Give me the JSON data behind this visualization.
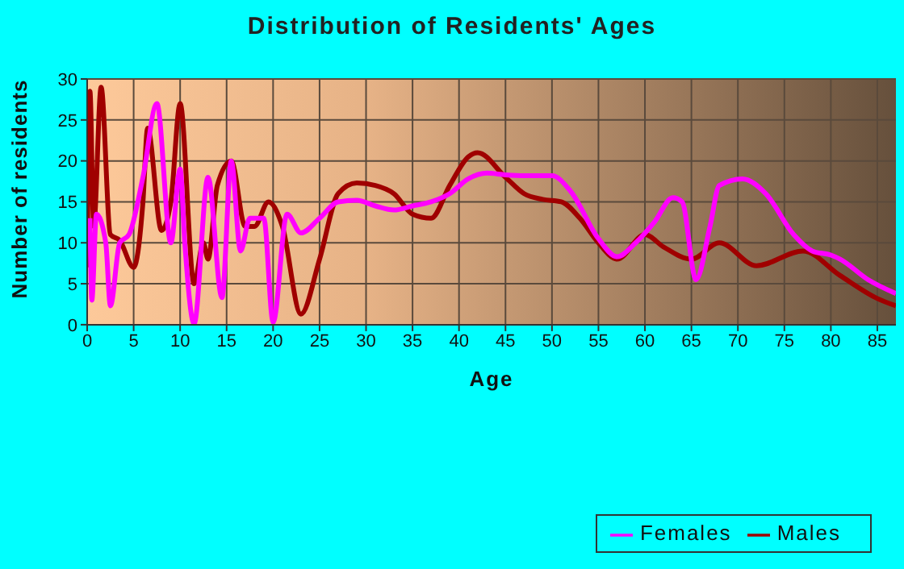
{
  "chart_data": {
    "type": "line",
    "title": "Distribution of Residents' Ages",
    "xlabel": "Age",
    "ylabel": "Number of residents",
    "xlim": [
      0,
      87
    ],
    "xticks": [
      0,
      5,
      10,
      15,
      20,
      25,
      30,
      35,
      40,
      45,
      50,
      55,
      60,
      65,
      70,
      75,
      80,
      85
    ],
    "ylim": [
      0,
      30
    ],
    "yticks": [
      0,
      5,
      10,
      15,
      20,
      25,
      30
    ],
    "grid": true,
    "legend": "bottom right",
    "marker": "none",
    "line_style": "solid",
    "series": [
      {
        "name": "Males",
        "color": "#a00000",
        "x": [
          0,
          0.3,
          0.7,
          1.5,
          2.5,
          3.5,
          5,
          6,
          6.5,
          8,
          9,
          10,
          11.5,
          12.5,
          13,
          14,
          15.5,
          17,
          18,
          19.5,
          21,
          23,
          25,
          27,
          29,
          31,
          33,
          35,
          37,
          39,
          41,
          42,
          45,
          47,
          49,
          51,
          53,
          55,
          57,
          60,
          62,
          65,
          68,
          72,
          77,
          81,
          85,
          87
        ],
        "values": [
          7,
          28.5,
          12,
          29,
          11,
          10.3,
          7,
          15,
          24,
          11.5,
          15,
          27,
          5,
          10,
          8,
          17,
          20,
          12,
          12,
          15,
          12,
          1.3,
          8,
          16,
          17.3,
          17,
          16,
          13.5,
          13,
          17,
          20.5,
          21,
          18,
          16,
          15.3,
          15,
          13,
          10,
          8,
          11,
          9.5,
          8,
          10,
          7.2,
          9,
          6,
          3.2,
          2.3
        ]
      },
      {
        "name": "Females",
        "color": "#ff00ff",
        "x": [
          0.3,
          0.5,
          1,
          2,
          2.5,
          3.5,
          4.5,
          6,
          7.5,
          9,
          10,
          10.5,
          11.5,
          13,
          14.5,
          15.5,
          16.5,
          17.5,
          19,
          20,
          21.5,
          23,
          25,
          27,
          29,
          31,
          33,
          35,
          37,
          39,
          41,
          43,
          45,
          47,
          50,
          52,
          55,
          57,
          59,
          61,
          63,
          64,
          65.5,
          67,
          68,
          70.5,
          73,
          76,
          78,
          80,
          81,
          84,
          87
        ],
        "values": [
          13,
          3,
          13.5,
          10,
          2.3,
          10,
          11,
          18,
          27,
          10,
          19,
          10,
          0.1,
          18,
          3.3,
          20,
          9,
          13,
          13,
          0.3,
          13.5,
          11.2,
          13,
          15,
          15.2,
          14.5,
          14,
          14.5,
          15,
          16,
          17.8,
          18.5,
          18.3,
          18.2,
          18.2,
          16.3,
          10.5,
          8.3,
          10,
          12.5,
          15.5,
          15,
          5.5,
          12,
          17,
          17.8,
          16,
          11,
          9,
          8.5,
          8,
          5.5,
          3.8
        ]
      }
    ]
  }
}
